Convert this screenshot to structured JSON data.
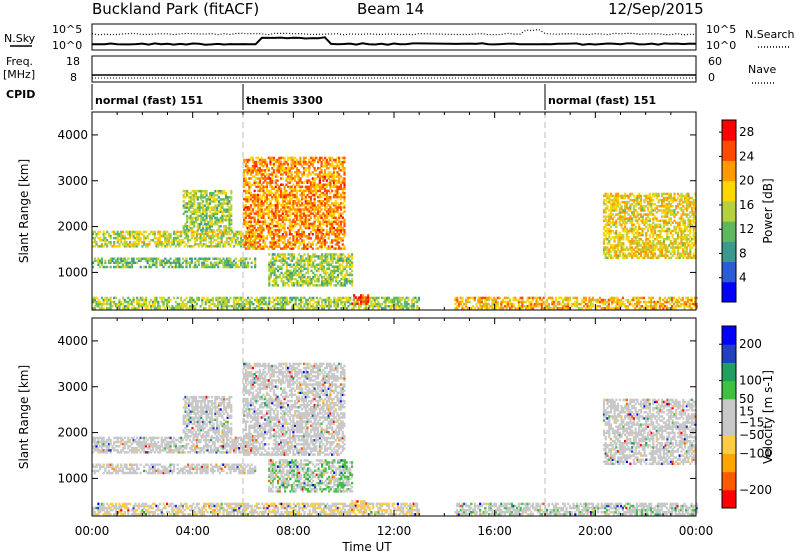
{
  "header": {
    "station": "Buckland Park (fitACF)",
    "beam": "Beam 14",
    "date": "12/Sep/2015"
  },
  "noise_panel": {
    "left_label": "N.Sky",
    "right_label": "N.Search",
    "left_ticks": [
      "10^5",
      "10^0"
    ],
    "right_ticks": [
      "10^5",
      "10^0"
    ]
  },
  "freq_panel": {
    "left_label_1": "Freq.",
    "left_label_2": "[MHz]",
    "right_label": "Nave",
    "left_ticks": [
      "18",
      "8"
    ],
    "right_ticks": [
      "60",
      "0"
    ]
  },
  "cpid": {
    "label": "CPID",
    "modes": [
      {
        "start_hour": 0,
        "text": "normal (fast) 151"
      },
      {
        "start_hour": 6,
        "text": "themis 3300"
      },
      {
        "start_hour": 18,
        "text": "normal (fast) 151"
      }
    ]
  },
  "colors": {
    "power_scale": [
      "#0000ff",
      "#2c5bd6",
      "#3a9a8e",
      "#5fb85f",
      "#b6d13e",
      "#ffd700",
      "#ff9a00",
      "#ff4a00",
      "#ff0000"
    ],
    "velocity_scale": [
      "#ff0000",
      "#ff5a00",
      "#ffa500",
      "#ffcc44",
      "#c8c8c8",
      "#c8c8c8",
      "#40c040",
      "#20a060",
      "#2040c0",
      "#0000ff"
    ]
  },
  "chart_data": [
    {
      "type": "heatmap",
      "title": "",
      "xlabel": "Time UT",
      "ylabel": "Slant Range [km]",
      "x_ticks": [
        "00:00",
        "04:00",
        "08:00",
        "12:00",
        "16:00",
        "20:00",
        "00:00"
      ],
      "y_ticks": [
        1000,
        2000,
        3000,
        4000
      ],
      "ylim": [
        180,
        4500
      ],
      "xlim_hours": [
        0,
        24
      ],
      "colorbar": {
        "label": "Power [dB]",
        "ticks": [
          4,
          8,
          12,
          16,
          20,
          24,
          28
        ],
        "range": [
          0,
          30
        ]
      },
      "data_gap_hours": [
        13,
        14.4
      ],
      "echo_regions": [
        {
          "name": "band-upper",
          "start_h": 0,
          "end_h": 6.5,
          "range_start": 1550,
          "range_end": 1900,
          "value": 16
        },
        {
          "name": "band-lower",
          "start_h": 0,
          "end_h": 6.5,
          "range_start": 1100,
          "range_end": 1300,
          "value": 12
        },
        {
          "name": "ground-scatter",
          "start_h": 0,
          "end_h": 13,
          "range_start": 200,
          "range_end": 450,
          "value": 14
        },
        {
          "name": "arc-early",
          "start_h": 3.6,
          "end_h": 5.5,
          "range_start": 1900,
          "range_end": 2800,
          "value": 14
        },
        {
          "name": "themis-peak",
          "start_h": 6,
          "end_h": 10,
          "range_start": 1500,
          "range_end": 3500,
          "value": 22
        },
        {
          "name": "scatter-lower",
          "start_h": 7,
          "end_h": 10.3,
          "range_start": 700,
          "range_end": 1400,
          "value": 14
        },
        {
          "name": "near-range",
          "start_h": 10.3,
          "end_h": 11,
          "range_start": 300,
          "range_end": 500,
          "value": 26
        },
        {
          "name": "evening-ground",
          "start_h": 14.4,
          "end_h": 24,
          "range_start": 200,
          "range_end": 450,
          "value": 20
        },
        {
          "name": "evening-arc",
          "start_h": 20.3,
          "end_h": 24,
          "range_start": 1300,
          "range_end": 2700,
          "value": 18
        }
      ]
    },
    {
      "type": "heatmap",
      "title": "",
      "xlabel": "Time UT",
      "ylabel": "Slant Range [km]",
      "x_ticks": [
        "00:00",
        "04:00",
        "08:00",
        "12:00",
        "16:00",
        "20:00",
        "00:00"
      ],
      "y_ticks": [
        1000,
        2000,
        3000,
        4000
      ],
      "ylim": [
        180,
        4500
      ],
      "xlim_hours": [
        0,
        24
      ],
      "colorbar": {
        "label": "Velocity [m s-1]",
        "ticks": [
          -200,
          -100,
          -50,
          -15,
          15,
          50,
          100,
          200
        ],
        "range": [
          -250,
          250
        ]
      },
      "data_gap_hours": [
        13,
        14.4
      ],
      "echo_regions": [
        {
          "name": "band-upper",
          "start_h": 0,
          "end_h": 6.5,
          "range_start": 1550,
          "range_end": 1900,
          "value": 0
        },
        {
          "name": "band-lower",
          "start_h": 0,
          "end_h": 6.5,
          "range_start": 1100,
          "range_end": 1300,
          "value": 0
        },
        {
          "name": "ground-scatter",
          "start_h": 0,
          "end_h": 13,
          "range_start": 200,
          "range_end": 450,
          "value": -40
        },
        {
          "name": "arc-early",
          "start_h": 3.6,
          "end_h": 5.5,
          "range_start": 1900,
          "range_end": 2800,
          "value": 0
        },
        {
          "name": "themis-peak",
          "start_h": 6,
          "end_h": 10,
          "range_start": 1500,
          "range_end": 3500,
          "value": 0
        },
        {
          "name": "scatter-lower",
          "start_h": 7,
          "end_h": 10.3,
          "range_start": 700,
          "range_end": 1400,
          "value": 40
        },
        {
          "name": "near-range",
          "start_h": 10.3,
          "end_h": 11,
          "range_start": 300,
          "range_end": 500,
          "value": -60
        },
        {
          "name": "evening-ground",
          "start_h": 14.4,
          "end_h": 24,
          "range_start": 200,
          "range_end": 450,
          "value": 20
        },
        {
          "name": "evening-arc",
          "start_h": 20.3,
          "end_h": 24,
          "range_start": 1300,
          "range_end": 2700,
          "value": 0
        }
      ]
    }
  ]
}
